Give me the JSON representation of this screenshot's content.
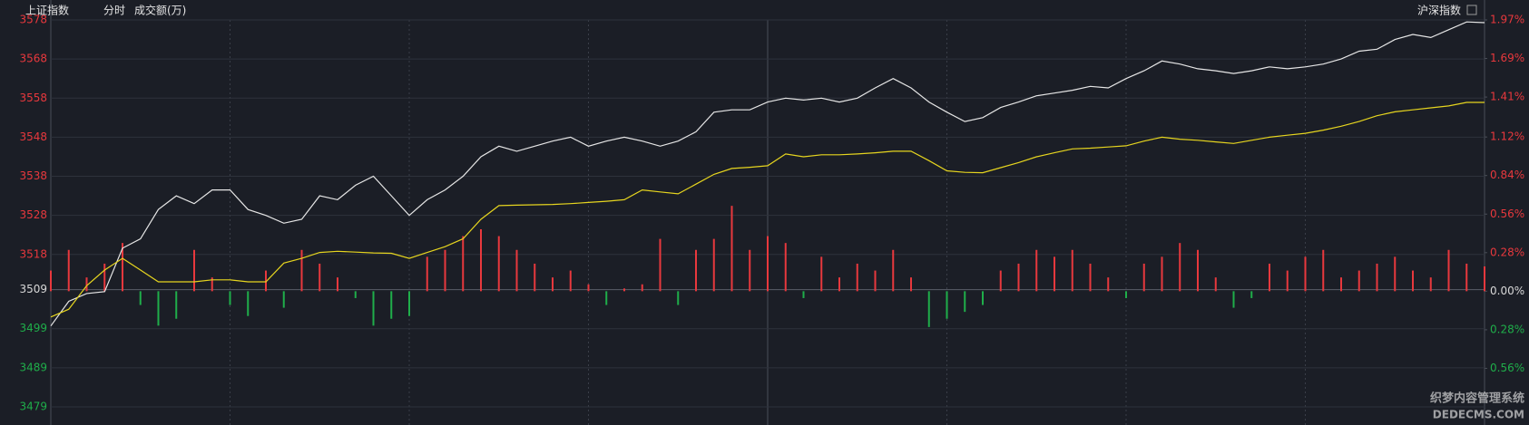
{
  "chart_data": {
    "type": "intraday",
    "title": "上证指数",
    "subtitle": "分时",
    "volume_label": "成交额(万)",
    "right_title": "沪深指数",
    "watermark": {
      "line1": "织梦内容管理系统",
      "line2": "DEDECMS.COM"
    },
    "ylim": [
      3479,
      3578
    ],
    "yticks": [
      3578,
      3568,
      3558,
      3548,
      3538,
      3528,
      3518,
      3509,
      3499,
      3489,
      3479
    ],
    "y2lim": [
      -0.84,
      1.97
    ],
    "y2ticks": [
      {
        "value": 1.97,
        "label": "1.97%"
      },
      {
        "value": 1.69,
        "label": "1.69%"
      },
      {
        "value": 1.41,
        "label": "1.41%"
      },
      {
        "value": 1.12,
        "label": "1.12%"
      },
      {
        "value": 0.84,
        "label": "0.84%"
      },
      {
        "value": 0.56,
        "label": "0.56%"
      },
      {
        "value": 0.28,
        "label": "0.28%"
      },
      {
        "value": 0,
        "label": "0.00%"
      },
      {
        "value": -0.28,
        "label": "0.28%"
      },
      {
        "value": -0.56,
        "label": "0.56%"
      }
    ],
    "up_color": "#e8383d",
    "down_color": "#1fae4a",
    "flat_color": "#d8d8d8",
    "grid": true,
    "series": [
      {
        "name": "price",
        "color": "#e6e6e6",
        "values": [
          3499.7,
          3506,
          3508,
          3508.5,
          3519.6,
          3522,
          3529.5,
          3533,
          3531,
          3534.5,
          3534.5,
          3529.5,
          3528,
          3526,
          3527,
          3533,
          3532,
          3535.7,
          3538,
          3533,
          3528,
          3532,
          3534.5,
          3538,
          3543,
          3545.7,
          3544.4,
          3545.7,
          3547,
          3548,
          3545.7,
          3547,
          3548,
          3547,
          3545.7,
          3547,
          3549.4,
          3554.4,
          3555,
          3555,
          3557,
          3558,
          3557.5,
          3558,
          3557,
          3558,
          3560.6,
          3563,
          3560.6,
          3557,
          3554.4,
          3552,
          3553,
          3555.6,
          3557,
          3558.6,
          3559.3,
          3560,
          3561,
          3560.6,
          3563,
          3565,
          3567.5,
          3566.7,
          3565.5,
          3565,
          3564.3,
          3565,
          3566,
          3565.5,
          3566,
          3566.7,
          3568,
          3570,
          3570.5,
          3573,
          3574.3,
          3573.5,
          3575.5,
          3577.5,
          3577.3
        ]
      },
      {
        "name": "average",
        "color": "#e6d51f",
        "values": [
          3502,
          3504,
          3510,
          3514,
          3517,
          3514,
          3511,
          3511,
          3511,
          3511.5,
          3511.5,
          3511,
          3511,
          3515.8,
          3517,
          3518.5,
          3518.8,
          3518.6,
          3518.4,
          3518.3,
          3517,
          3518.5,
          3520,
          3522,
          3527,
          3530.5,
          3530.6,
          3530.7,
          3530.8,
          3531,
          3531.3,
          3531.6,
          3532,
          3534.5,
          3534,
          3533.5,
          3536,
          3538.5,
          3540,
          3540.3,
          3540.7,
          3543.7,
          3543,
          3543.5,
          3543.5,
          3543.7,
          3544,
          3544.4,
          3544.4,
          3542,
          3539.4,
          3539,
          3538.9,
          3540.2,
          3541.5,
          3543,
          3544,
          3545,
          3545.2,
          3545.5,
          3545.8,
          3547,
          3548,
          3547.5,
          3547.2,
          3546.8,
          3546.4,
          3547.2,
          3548,
          3548.5,
          3549,
          3549.8,
          3550.8,
          3552,
          3553.5,
          3554.5,
          3555,
          3555.5,
          3556,
          3556.9,
          3556.9
        ]
      },
      {
        "name": "change",
        "axis": "y2",
        "values": [
          0.15,
          0.3,
          0.1,
          0.2,
          0.35,
          -0.1,
          -0.25,
          -0.2,
          0.3,
          0.1,
          -0.1,
          -0.18,
          0.15,
          -0.12,
          0.3,
          0.2,
          0.1,
          -0.05,
          -0.25,
          -0.2,
          -0.18,
          0.25,
          0.3,
          0.4,
          0.45,
          0.4,
          0.3,
          0.2,
          0.1,
          0.15,
          0.05,
          -0.1,
          0.02,
          0.05,
          0.38,
          -0.1,
          0.3,
          0.38,
          0.62,
          0.3,
          0.4,
          0.35,
          -0.05,
          0.25,
          0.1,
          0.2,
          0.15,
          0.3,
          0.1,
          -0.26,
          -0.2,
          -0.15,
          -0.1,
          0.15,
          0.2,
          0.3,
          0.25,
          0.3,
          0.2,
          0.1,
          -0.05,
          0.2,
          0.25,
          0.35,
          0.3,
          0.1,
          -0.12,
          -0.05,
          0.2,
          0.15,
          0.25,
          0.3,
          0.1,
          0.15,
          0.2,
          0.25,
          0.15,
          0.1,
          0.3,
          0.2,
          0.18
        ]
      }
    ]
  }
}
